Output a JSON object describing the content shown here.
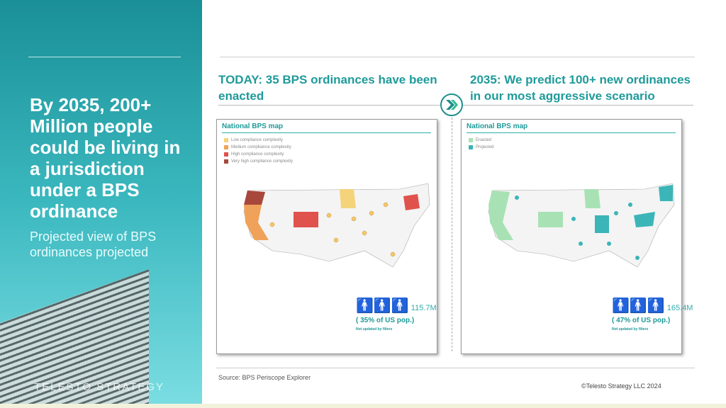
{
  "left": {
    "title": "By 2035, 200+ Million people could be living in a jurisdiction under a BPS ordinance",
    "subtitle": "Projected view of BPS ordinances projected",
    "logo": "TELESTO STRATEGY"
  },
  "today": {
    "heading": "TODAY: 35 BPS ordinances have been enacted",
    "map_title": "National BPS map",
    "legend": [
      {
        "label": "Low compliance complexity",
        "color": "#f5d37a"
      },
      {
        "label": "Medium compliaince complexity",
        "color": "#f0a25a"
      },
      {
        "label": "High compliance complexity",
        "color": "#e0524c"
      },
      {
        "label": "Very high compliance complexity",
        "color": "#a8473c"
      }
    ],
    "population": "115.7M",
    "percent": "( 35% of US pop.)",
    "note": "Not updated by filters"
  },
  "future": {
    "heading": "2035: We predict 100+ new ordinances in our most aggressive scenario",
    "map_title": "National BPS map",
    "legend": [
      {
        "label": "Enacted",
        "color": "#a8e2b4"
      },
      {
        "label": "Projected",
        "color": "#3bb5b8"
      }
    ],
    "population": "165.4M",
    "percent": "( 47% of US pop.)",
    "note": "Not updated by filters"
  },
  "footer": {
    "source": "Source: BPS Periscope Explorer",
    "copyright": "©Telesto Strategy LLC 2024"
  }
}
